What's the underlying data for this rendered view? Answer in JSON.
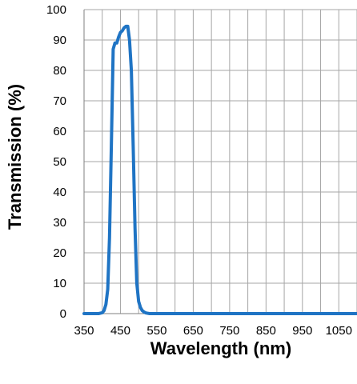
{
  "chart_data": {
    "type": "line",
    "title": "",
    "xlabel": "Wavelength (nm)",
    "ylabel": "Transmission (%)",
    "xlim": [
      350,
      1100
    ],
    "ylim": [
      0,
      100
    ],
    "x_ticks": [
      350,
      450,
      550,
      650,
      750,
      850,
      950,
      1050
    ],
    "x_tick_labels": [
      "350",
      "450",
      "550",
      "650",
      "750",
      "850",
      "950",
      "1050"
    ],
    "y_ticks": [
      0,
      10,
      20,
      30,
      40,
      50,
      60,
      70,
      80,
      90,
      100
    ],
    "y_tick_labels": [
      "0",
      "10",
      "20",
      "30",
      "40",
      "50",
      "60",
      "70",
      "80",
      "90",
      "100"
    ],
    "x_grid_step": 50,
    "y_grid_step": 10,
    "grid": true,
    "series": [
      {
        "color": "#1f74c4",
        "x": [
          350,
          390,
          400,
          405,
          410,
          415,
          420,
          425,
          430,
          435,
          440,
          445,
          450,
          455,
          460,
          465,
          470,
          475,
          480,
          485,
          490,
          495,
          500,
          505,
          510,
          515,
          520,
          530,
          550,
          600,
          700,
          800,
          900,
          1000,
          1100
        ],
        "y": [
          0,
          0,
          0.3,
          1,
          3,
          8,
          25,
          55,
          87,
          89,
          89,
          91,
          92.5,
          93,
          94,
          94.5,
          94.5,
          90,
          80,
          55,
          28,
          10,
          4,
          2,
          1,
          0.5,
          0.2,
          0,
          0,
          0,
          0,
          0,
          0,
          0,
          0
        ]
      }
    ]
  }
}
